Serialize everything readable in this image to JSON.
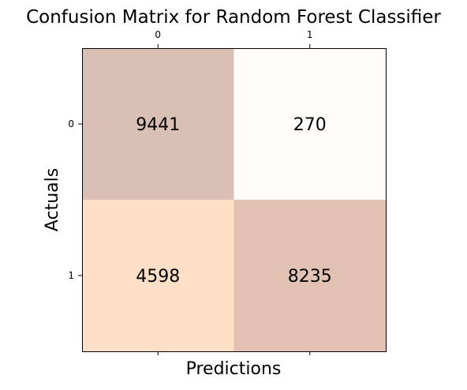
{
  "chart_data": {
    "type": "heatmap",
    "title": "Confusion Matrix for Random Forest Classifier",
    "xlabel": "Predictions",
    "ylabel": "Actuals",
    "x_categories": [
      "0",
      "1"
    ],
    "y_categories": [
      "0",
      "1"
    ],
    "values": [
      [
        9441,
        270
      ],
      [
        4598,
        8235
      ]
    ],
    "cell_colors": [
      [
        "#d9bfb4",
        "#fffcfa"
      ],
      [
        "#ffdfc6",
        "#e2c3b3"
      ]
    ],
    "x_tick_position": "top",
    "grid": false,
    "legend": "none"
  }
}
